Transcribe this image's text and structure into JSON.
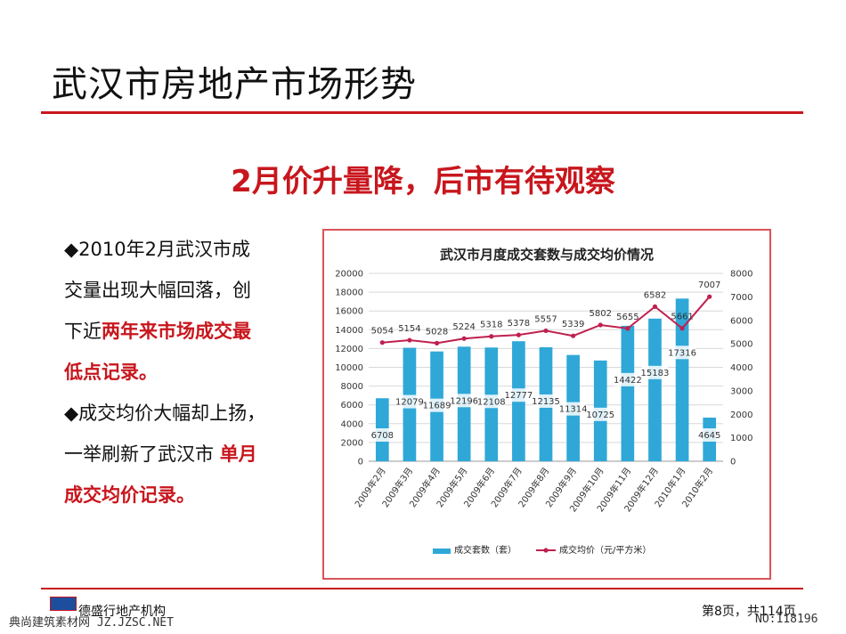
{
  "slide": {
    "title": "武汉市房地产市场形势",
    "subtitle": "2月价升量降，后市有待观察"
  },
  "bullets": {
    "b1_l1": "◆2010年2月武汉市成",
    "b1_l2": "交量出现大幅回落，创",
    "b1_l3_a": "下近",
    "b1_l3_b": "两年来市场成交最",
    "b1_l4": "低点记录。",
    "b2_l1": "◆成交均价大幅却上扬，",
    "b2_l2_a": "一举刷新了武汉市 ",
    "b2_l2_b": "单月",
    "b2_l3": "成交均价记录。"
  },
  "chart_data": {
    "type": "bar+line",
    "title": "武汉市月度成交套数与成交均价情况",
    "categories": [
      "2009年2月",
      "2009年3月",
      "2009年4月",
      "2009年5月",
      "2009年6月",
      "2009年7月",
      "2009年8月",
      "2009年9月",
      "2009年10月",
      "2009年11月",
      "2009年12月",
      "2010年1月",
      "2010年2月"
    ],
    "series": [
      {
        "name": "成交套数（套）",
        "kind": "bar",
        "axis": "left",
        "color": "#2fa8d8",
        "values": [
          6708,
          12079,
          11689,
          12196,
          12108,
          12777,
          12135,
          11314,
          10725,
          14422,
          15183,
          17316,
          4645
        ]
      },
      {
        "name": "成交均价（元/平方米）",
        "kind": "line",
        "axis": "right",
        "color": "#c0204f",
        "values": [
          5054,
          5154,
          5028,
          5224,
          5318,
          5378,
          5557,
          5339,
          5802,
          5655,
          6582,
          5661,
          7007
        ]
      }
    ],
    "ylim_left": [
      0,
      20000
    ],
    "yticks_left": [
      "0",
      "2000",
      "4000",
      "6000",
      "8000",
      "10000",
      "12000",
      "14000",
      "16000",
      "18000",
      "20000"
    ],
    "ylim_right": [
      0,
      8000
    ],
    "yticks_right": [
      "0",
      "1000",
      "2000",
      "3000",
      "4000",
      "5000",
      "6000",
      "7000",
      "8000"
    ],
    "grid": true,
    "legend": "bottom"
  },
  "footer": {
    "company": "德盛行地产机构",
    "page": "第8页，共114页",
    "watermark_left": "典尚建筑素材网 JZ.JZSC.NET",
    "watermark_right": "NO:118196"
  },
  "colors": {
    "accent": "#c8161d",
    "bar": "#2fa8d8",
    "line": "#c0204f"
  }
}
